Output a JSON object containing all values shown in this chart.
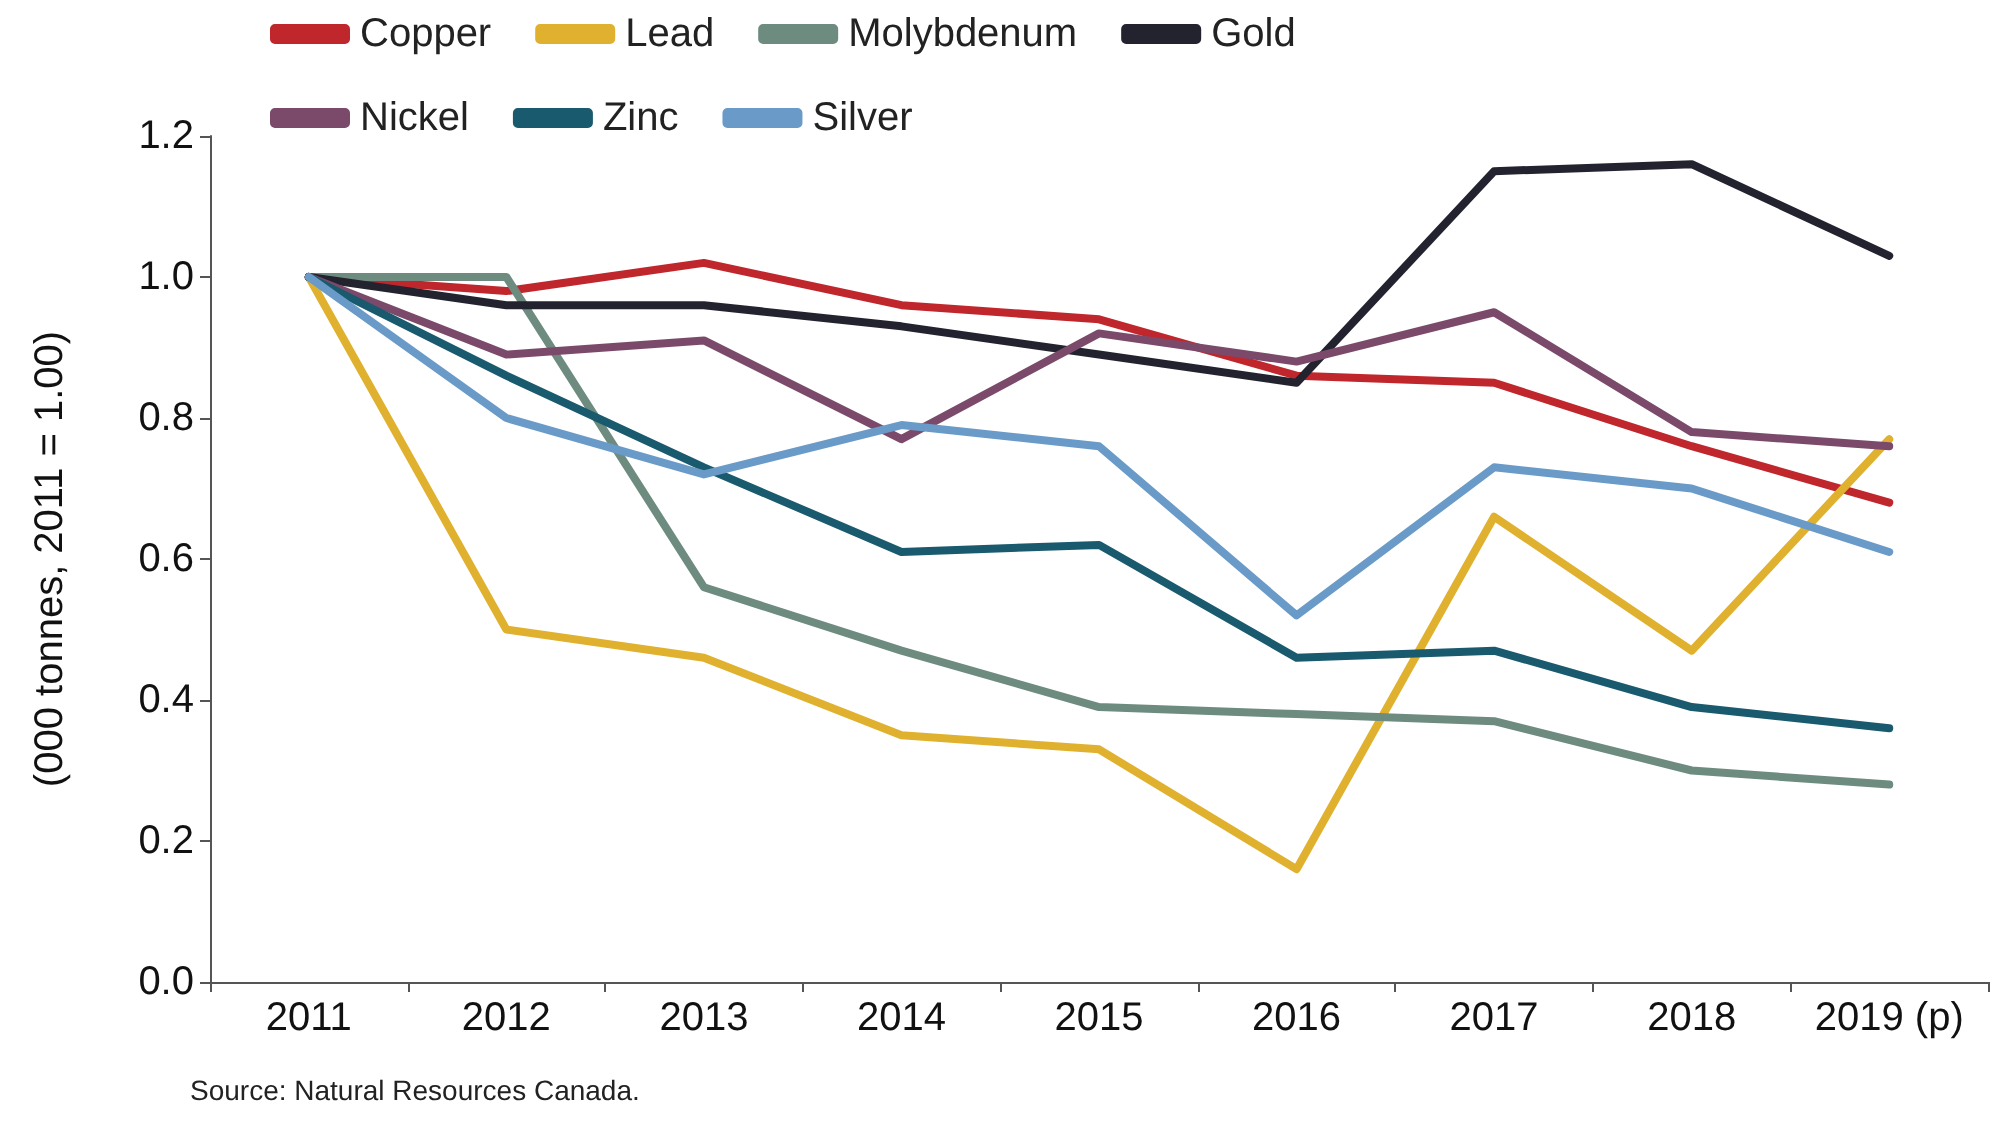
{
  "chart_data": {
    "type": "line",
    "ylabel": "(000 tonnes, 2011 = 1.00)",
    "categories": [
      "2011",
      "2012",
      "2013",
      "2014",
      "2015",
      "2016",
      "2017",
      "2018",
      "2019 (p)"
    ],
    "series": [
      {
        "name": "Copper",
        "color": "#c0272d",
        "values": [
          1.0,
          0.98,
          1.02,
          0.96,
          0.94,
          0.86,
          0.85,
          0.76,
          0.68
        ]
      },
      {
        "name": "Lead",
        "color": "#e0b12f",
        "values": [
          1.0,
          0.5,
          0.46,
          0.35,
          0.33,
          0.16,
          0.66,
          0.47,
          0.77
        ]
      },
      {
        "name": "Molybdenum",
        "color": "#6e8b80",
        "values": [
          1.0,
          1.0,
          0.56,
          0.47,
          0.39,
          0.38,
          0.37,
          0.3,
          0.28
        ]
      },
      {
        "name": "Gold",
        "color": "#22232e",
        "values": [
          1.0,
          0.96,
          0.96,
          0.93,
          0.89,
          0.85,
          1.15,
          1.16,
          1.03
        ]
      },
      {
        "name": "Nickel",
        "color": "#7b4a6b",
        "values": [
          1.0,
          0.89,
          0.91,
          0.77,
          0.92,
          0.88,
          0.95,
          0.78,
          0.76
        ]
      },
      {
        "name": "Zinc",
        "color": "#1a5a6e",
        "values": [
          1.0,
          0.86,
          0.73,
          0.61,
          0.62,
          0.46,
          0.47,
          0.39,
          0.36
        ]
      },
      {
        "name": "Silver",
        "color": "#6a9bc8",
        "values": [
          1.0,
          0.8,
          0.72,
          0.79,
          0.76,
          0.52,
          0.73,
          0.7,
          0.61
        ]
      }
    ],
    "ylim": [
      0,
      1.2
    ],
    "yticks": [
      {
        "value": 0,
        "label": "0.0"
      },
      {
        "value": 0.2,
        "label": "0.2"
      },
      {
        "value": 0.4,
        "label": "0.4"
      },
      {
        "value": 0.6,
        "label": "0.6"
      },
      {
        "value": 0.8,
        "label": "0.8"
      },
      {
        "value": 1.0,
        "label": "1.0"
      },
      {
        "value": 1.2,
        "label": "1.2"
      }
    ],
    "grid": false,
    "legend": "top",
    "marker": "none",
    "line_style": "solid",
    "annotations": [
      "Source: Natural Resources Canada."
    ]
  }
}
